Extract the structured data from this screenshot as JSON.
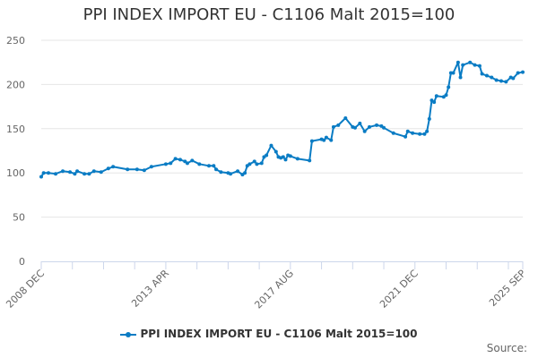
{
  "chart_data": {
    "type": "line",
    "title": "PPI INDEX IMPORT EU - C1106 Malt 2015=100",
    "xlabel": "",
    "ylabel": "",
    "ylim": [
      0,
      250
    ],
    "yticks": [
      "0",
      "50",
      "100",
      "150",
      "200",
      "250"
    ],
    "xrange": [
      "2008-12",
      "2025-09"
    ],
    "xtick_labels": [
      {
        "date": "2008-12",
        "label": "2008 DEC"
      },
      {
        "date": "2013-04",
        "label": "2013 APR"
      },
      {
        "date": "2017-08",
        "label": "2017 AUG"
      },
      {
        "date": "2021-12",
        "label": "2021 DEC"
      },
      {
        "date": "2025-09",
        "label": "2025 SEP"
      }
    ],
    "minor_tick_interval_months": 13,
    "grid": true,
    "legend": "bottom",
    "color": "#0a7cc4",
    "series": [
      {
        "name": "PPI INDEX IMPORT EU - C1106 Malt 2015=100",
        "points": [
          [
            "2008-12",
            95.6
          ],
          [
            "2009-01",
            100
          ],
          [
            "2009-03",
            100
          ],
          [
            "2009-06",
            99
          ],
          [
            "2009-09",
            102
          ],
          [
            "2009-12",
            101
          ],
          [
            "2010-02",
            99
          ],
          [
            "2010-03",
            102
          ],
          [
            "2010-06",
            99
          ],
          [
            "2010-08",
            99
          ],
          [
            "2010-10",
            102
          ],
          [
            "2011-01",
            101
          ],
          [
            "2011-04",
            105
          ],
          [
            "2011-06",
            107
          ],
          [
            "2011-12",
            104
          ],
          [
            "2012-04",
            104
          ],
          [
            "2012-07",
            103
          ],
          [
            "2012-10",
            107
          ],
          [
            "2013-04",
            110
          ],
          [
            "2013-06",
            111
          ],
          [
            "2013-08",
            116
          ],
          [
            "2013-10",
            115
          ],
          [
            "2013-12",
            113
          ],
          [
            "2014-01",
            111
          ],
          [
            "2014-03",
            114
          ],
          [
            "2014-06",
            110
          ],
          [
            "2014-10",
            108
          ],
          [
            "2014-12",
            108
          ],
          [
            "2015-01",
            104
          ],
          [
            "2015-03",
            101
          ],
          [
            "2015-06",
            100
          ],
          [
            "2015-07",
            99
          ],
          [
            "2015-10",
            102
          ],
          [
            "2015-12",
            98
          ],
          [
            "2016-01",
            100
          ],
          [
            "2016-02",
            108
          ],
          [
            "2016-03",
            110
          ],
          [
            "2016-05",
            113
          ],
          [
            "2016-06",
            110
          ],
          [
            "2016-08",
            111
          ],
          [
            "2016-09",
            118
          ],
          [
            "2016-10",
            120
          ],
          [
            "2016-12",
            131
          ],
          [
            "2017-02",
            124
          ],
          [
            "2017-03",
            118
          ],
          [
            "2017-04",
            117
          ],
          [
            "2017-05",
            118
          ],
          [
            "2017-06",
            115
          ],
          [
            "2017-07",
            120
          ],
          [
            "2017-08",
            119
          ],
          [
            "2017-11",
            116
          ],
          [
            "2018-04",
            114
          ],
          [
            "2018-05",
            136
          ],
          [
            "2018-09",
            138
          ],
          [
            "2018-10",
            137
          ],
          [
            "2018-11",
            140
          ],
          [
            "2019-01",
            137
          ],
          [
            "2019-02",
            152
          ],
          [
            "2019-04",
            154
          ],
          [
            "2019-07",
            162
          ],
          [
            "2019-10",
            152
          ],
          [
            "2019-11",
            151
          ],
          [
            "2020-01",
            156
          ],
          [
            "2020-03",
            147
          ],
          [
            "2020-05",
            152
          ],
          [
            "2020-08",
            154
          ],
          [
            "2020-10",
            153
          ],
          [
            "2020-11",
            151
          ],
          [
            "2021-03",
            145
          ],
          [
            "2021-08",
            141
          ],
          [
            "2021-09",
            147
          ],
          [
            "2021-11",
            145
          ],
          [
            "2022-02",
            144
          ],
          [
            "2022-04",
            144
          ],
          [
            "2022-05",
            147
          ],
          [
            "2022-06",
            161
          ],
          [
            "2022-07",
            182
          ],
          [
            "2022-08",
            180
          ],
          [
            "2022-09",
            187
          ],
          [
            "2022-12",
            186
          ],
          [
            "2023-01",
            188
          ],
          [
            "2023-02",
            197
          ],
          [
            "2023-03",
            213
          ],
          [
            "2023-04",
            213
          ],
          [
            "2023-06",
            225
          ],
          [
            "2023-07",
            208
          ],
          [
            "2023-08",
            222
          ],
          [
            "2023-11",
            225
          ],
          [
            "2024-01",
            222
          ],
          [
            "2024-03",
            221
          ],
          [
            "2024-04",
            212
          ],
          [
            "2024-06",
            210
          ],
          [
            "2024-08",
            208
          ],
          [
            "2024-10",
            205
          ],
          [
            "2024-12",
            204
          ],
          [
            "2025-02",
            203
          ],
          [
            "2025-04",
            208
          ],
          [
            "2025-05",
            207
          ],
          [
            "2025-07",
            213
          ],
          [
            "2025-09",
            214
          ]
        ]
      }
    ]
  },
  "footer": {
    "source_label": "Source:"
  }
}
